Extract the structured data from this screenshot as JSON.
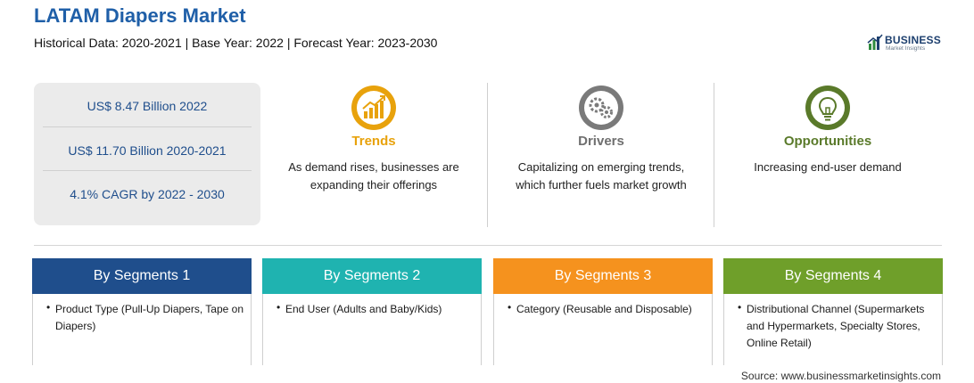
{
  "header": {
    "title": "LATAM Diapers Market",
    "subtitle": "Historical Data: 2020-2021 | Base Year: 2022 | Forecast Year: 2023-2030"
  },
  "logo": {
    "name": "BUSINESS",
    "tagline": "Market Insights"
  },
  "stats": [
    "US$ 8.47 Billion 2022",
    "US$ 11.70 Billion 2020-2021",
    "4.1% CAGR by 2022 - 2030"
  ],
  "highlights": [
    {
      "heading": "Trends",
      "text": "As demand rises, businesses are expanding their offerings",
      "color": "#e8a20c",
      "icon": "chart-up-icon"
    },
    {
      "heading": "Drivers",
      "text": "Capitalizing on emerging trends, which further fuels market growth",
      "color": "#6f6f6f",
      "icon": "gears-icon"
    },
    {
      "heading": "Opportunities",
      "text": "Increasing end-user demand",
      "color": "#5a7a2a",
      "icon": "lightbulb-icon"
    }
  ],
  "segments": [
    {
      "heading": "By Segments 1",
      "text": "Product Type (Pull-Up Diapers, Tape on Diapers)",
      "color": "#1f4e8c"
    },
    {
      "heading": "By Segments 2",
      "text": "End User (Adults and Baby/Kids)",
      "color": "#1fb3b0"
    },
    {
      "heading": "By Segments 3",
      "text": "Category (Reusable and Disposable)",
      "color": "#f5921e"
    },
    {
      "heading": "By Segments 4",
      "text": "Distributional Channel (Supermarkets and Hypermarkets, Specialty Stores, Online Retail)",
      "color": "#6f9f2a"
    }
  ],
  "bullet": "•",
  "source": "Source: www.businessmarketinsights.com"
}
